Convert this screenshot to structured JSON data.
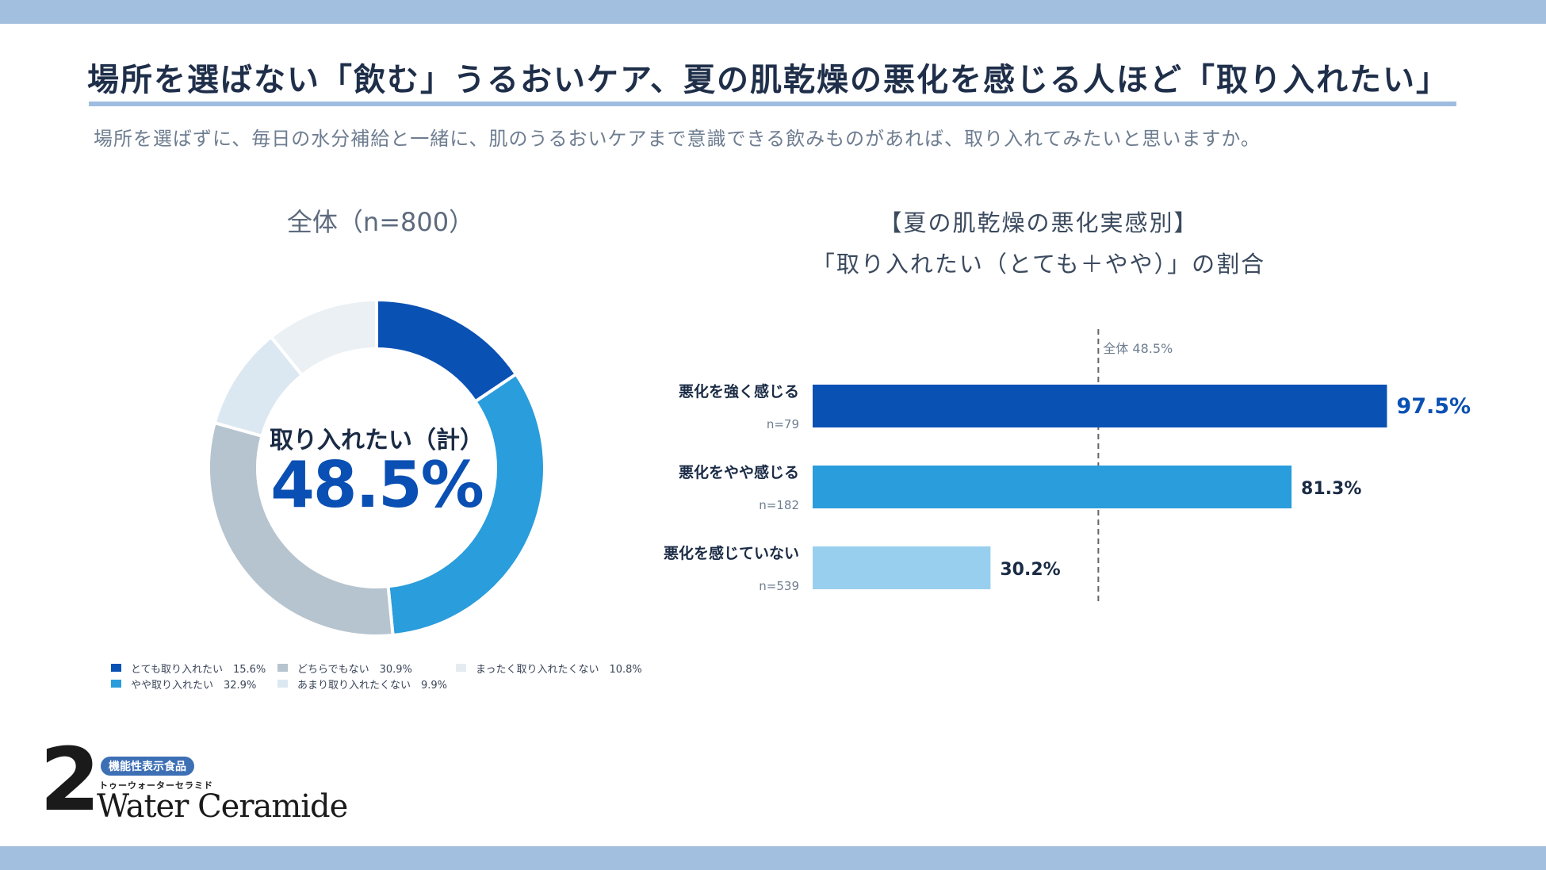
{
  "header": {
    "title": "場所を選ばない「飲む」うるおいケア、夏の肌乾燥の悪化を感じる人ほど「取り入れたい」",
    "subtitle": "場所を選ばずに、毎日の水分補給と一緒に、肌のうるおいケアまで意識できる飲みものがあれば、取り入れてみたいと思いますか。"
  },
  "logo": {
    "number": "2",
    "badge": "機能性表示食品",
    "kana": "トゥーウォーターセラミド",
    "name": "Water Ceramide"
  },
  "chart_data": [
    {
      "type": "pie",
      "title": "全体（n=800）",
      "center_label": "取り入れたい（計）",
      "center_value": "48.5%",
      "slices": [
        {
          "name": "とても取り入れたい",
          "value": 15.6,
          "label": "15.6%",
          "color": "#0a51b4"
        },
        {
          "name": "やや取り入れたい",
          "value": 32.9,
          "label": "32.9%",
          "color": "#2a9ddc"
        },
        {
          "name": "どちらでもない",
          "value": 30.9,
          "label": "30.9%",
          "color": "#b6c4cf"
        },
        {
          "name": "あまり取り入れたくない",
          "value": 9.9,
          "label": "9.9%",
          "color": "#dce8f1"
        },
        {
          "name": "まったく取り入れたくない",
          "value": 10.8,
          "label": "10.8%",
          "color": "#eaf0f4"
        }
      ],
      "legend_order": [
        0,
        2,
        4,
        1,
        3
      ]
    },
    {
      "type": "bar",
      "orientation": "horizontal",
      "title_line1": "【夏の肌乾燥の悪化実感別】",
      "title_line2": "「取り入れたい（とても＋やや）」の割合",
      "categories": [
        "悪化を強く感じる",
        "悪化をやや感じる",
        "悪化を感じていない"
      ],
      "sample_sizes": [
        "n=79",
        "n=182",
        "n=539"
      ],
      "values": [
        97.5,
        81.3,
        30.2
      ],
      "value_labels": [
        "97.5%",
        "81.3%",
        "30.2%"
      ],
      "colors": [
        "#0a51b4",
        "#2a9ddc",
        "#99cfee"
      ],
      "label_colors": [
        "#0a51b4",
        "#1a2b45",
        "#1a2b45"
      ],
      "xlim": [
        0,
        100
      ],
      "reference": {
        "value": 48.5,
        "label": "全体 48.5%"
      }
    }
  ]
}
